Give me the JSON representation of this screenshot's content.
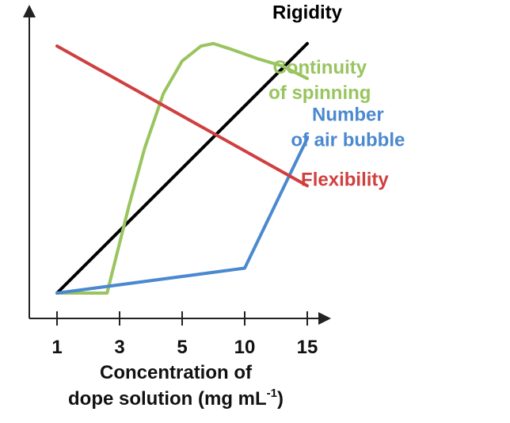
{
  "chart_data": {
    "type": "line",
    "title": "",
    "xlabel_line1": "Concentration of",
    "xlabel_line2_prefix": "dope solution (mg mL",
    "xlabel_line2_sup": "-1",
    "xlabel_line2_suffix": ")",
    "ylabel": "",
    "x_ticks": [
      "1",
      "3",
      "5",
      "10",
      "15"
    ],
    "y_axis_values_shown": false,
    "grid": false,
    "series": [
      {
        "name_lines": [
          "Rigidity"
        ],
        "color": "#000000",
        "label_anchor": {
          "x": 4.0,
          "y": 1.1
        },
        "points": [
          [
            0,
            0.0
          ],
          [
            4.0,
            1.0
          ]
        ]
      },
      {
        "name_lines": [
          "Continuity",
          "of spinning"
        ],
        "color": "#99c45f",
        "label_anchor": {
          "x": 4.2,
          "y": 0.88
        },
        "points": [
          [
            0,
            0.0
          ],
          [
            0.8,
            0.0
          ],
          [
            0.85,
            0.05
          ],
          [
            1.15,
            0.35
          ],
          [
            1.4,
            0.58
          ],
          [
            1.7,
            0.8
          ],
          [
            2.0,
            0.93
          ],
          [
            2.3,
            0.99
          ],
          [
            2.5,
            1.0
          ],
          [
            2.75,
            0.98
          ],
          [
            3.2,
            0.94
          ],
          [
            3.6,
            0.91
          ],
          [
            4.0,
            0.86
          ]
        ]
      },
      {
        "name_lines": [
          "Number",
          "of air bubble"
        ],
        "color": "#4a89d0",
        "label_anchor": {
          "x": 4.65,
          "y": 0.69
        },
        "points": [
          [
            0,
            0.0
          ],
          [
            3.0,
            0.1
          ],
          [
            4.0,
            0.62
          ]
        ]
      },
      {
        "name_lines": [
          "Flexibility"
        ],
        "color": "#d03f3f",
        "label_anchor": {
          "x": 4.6,
          "y": 0.43
        },
        "points": [
          [
            0,
            0.99
          ],
          [
            4.0,
            0.43
          ]
        ]
      }
    ]
  }
}
